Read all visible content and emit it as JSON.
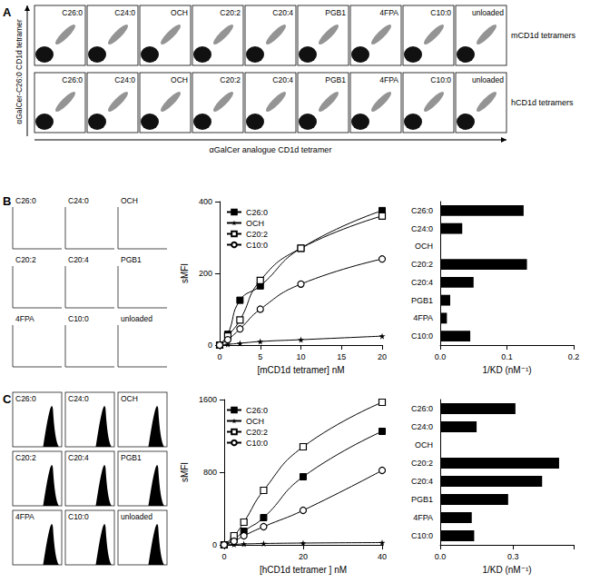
{
  "panel_labels": [
    "A",
    "B",
    "C"
  ],
  "panel_A": {
    "y_label": "αGalCer-C26:0 CD1d tetramer",
    "x_label": "αGalCer analogue CD1d tetramer",
    "columns": [
      "C26:0",
      "C24:0",
      "OCH",
      "C20:2",
      "C20:4",
      "PGB1",
      "4FPA",
      "C10:0",
      "unloaded"
    ],
    "rows": [
      "mCD1d tetramers",
      "hCD1d tetramers"
    ]
  },
  "histograms_B": {
    "labels": [
      "C26:0",
      "C24:0",
      "OCH",
      "C20:2",
      "C20:4",
      "PGB1",
      "4FPA",
      "C10:0",
      "unloaded"
    ]
  },
  "histograms_C": {
    "labels": [
      "C26:0",
      "C24:0",
      "OCH",
      "C20:2",
      "C20:4",
      "PGB1",
      "4FPA",
      "C10:0",
      "unloaded"
    ]
  },
  "chart_data": [
    {
      "type": "line",
      "x_label": "[mCD1d tetramer] nM",
      "y_label": "sMFI",
      "x": [
        0,
        1,
        2.5,
        5,
        10,
        20
      ],
      "series": [
        {
          "name": "C26:0",
          "color": "#000000",
          "marker": "square",
          "values": [
            0,
            30,
            125,
            165,
            270,
            375
          ]
        },
        {
          "name": "OCH",
          "color": "#000000",
          "marker": "star",
          "values": [
            0,
            2,
            5,
            10,
            15,
            25
          ]
        },
        {
          "name": "C20:2",
          "color": "#000000",
          "marker": "square_open",
          "values": [
            0,
            25,
            70,
            180,
            270,
            360
          ]
        },
        {
          "name": "C10:0",
          "color": "#000000",
          "marker": "circle_open",
          "values": [
            0,
            15,
            45,
            100,
            170,
            240
          ]
        }
      ],
      "xlim": [
        0,
        20
      ],
      "xticks": [
        0,
        5,
        10,
        15,
        20
      ],
      "ylim": [
        0,
        400
      ],
      "yticks": [
        0,
        200,
        400
      ],
      "legend": "top-left"
    },
    {
      "type": "bar",
      "orientation": "horizontal",
      "x_label": "1/KD (nM⁻¹)",
      "categories": [
        "C26:0",
        "C24:0",
        "OCH",
        "C20:2",
        "C20:4",
        "PGB1",
        "4FPA",
        "C10:0"
      ],
      "values": [
        0.125,
        0.033,
        0,
        0.13,
        0.05,
        0.015,
        0.01,
        0.045
      ],
      "color": "#000000",
      "xlim": [
        0,
        0.2
      ],
      "xticks": [
        {
          "value": 0,
          "label": "0.0"
        },
        0.1,
        0.2
      ]
    },
    {
      "type": "line",
      "x_label": "[hCD1d tetramer ] nM",
      "y_label": "sMFI",
      "x": [
        0,
        2.5,
        5,
        10,
        20,
        40
      ],
      "series": [
        {
          "name": "C26:0",
          "color": "#000000",
          "marker": "square",
          "values": [
            0,
            60,
            150,
            300,
            750,
            1250
          ]
        },
        {
          "name": "OCH",
          "color": "#000000",
          "marker": "star",
          "values": [
            0,
            5,
            10,
            15,
            20,
            25
          ]
        },
        {
          "name": "C20:2",
          "color": "#000000",
          "marker": "square_open",
          "values": [
            0,
            100,
            250,
            600,
            1080,
            1570
          ]
        },
        {
          "name": "C10:0",
          "color": "#000000",
          "marker": "circle_open",
          "values": [
            0,
            40,
            100,
            200,
            380,
            820
          ]
        }
      ],
      "xlim": [
        0,
        40
      ],
      "xticks": [
        0,
        20,
        40
      ],
      "ylim": [
        0,
        1600
      ],
      "yticks": [
        0,
        800,
        1600
      ],
      "legend": "top-left"
    },
    {
      "type": "bar",
      "orientation": "horizontal",
      "x_label": "1/KD (nM⁻¹)",
      "categories": [
        "C26:0",
        "C24:0",
        "OCH",
        "C20:2",
        "C20:4",
        "PGB1",
        "4FPA",
        "C10:0"
      ],
      "values": [
        0.31,
        0.15,
        0,
        0.49,
        0.42,
        0.28,
        0.13,
        0.14
      ],
      "color": "#000000",
      "xlim": [
        0,
        0.55
      ],
      "xticks": [
        {
          "value": 0,
          "label": "0.0"
        },
        0.3
      ]
    }
  ]
}
